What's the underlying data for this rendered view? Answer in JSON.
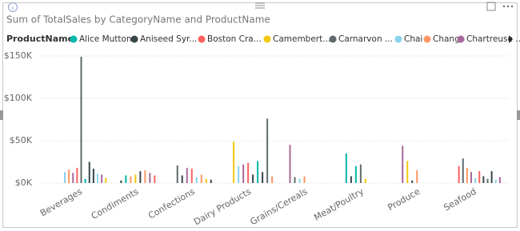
{
  "chart_data": {
    "type": "bar",
    "title": "Sum of TotalSales by CategoryName and ProductName",
    "legend_title": "ProductName",
    "categories": [
      "Beverages",
      "Condiments",
      "Confections",
      "Dairy Products",
      "Grains/Cereals",
      "Meat/Poultry",
      "Produce",
      "Seafood"
    ],
    "series": [
      {
        "name": "Alice Mutton",
        "color": "#01b8aa",
        "values": [
          null,
          null,
          null,
          null,
          null,
          35000,
          null,
          null
        ]
      },
      {
        "name": "Aniseed Syr...",
        "color": "#374649",
        "values": [
          null,
          3000,
          null,
          null,
          null,
          null,
          null,
          null
        ]
      },
      {
        "name": "Boston Cra...",
        "color": "#fd625e",
        "values": [
          null,
          null,
          null,
          null,
          null,
          null,
          null,
          20000
        ]
      },
      {
        "name": "Camembert...",
        "color": "#f2c80f",
        "values": [
          null,
          null,
          null,
          49000,
          null,
          null,
          null,
          null
        ]
      },
      {
        "name": "Carnarvon ...",
        "color": "#5f6b6d",
        "values": [
          null,
          null,
          null,
          null,
          null,
          null,
          null,
          29000
        ]
      },
      {
        "name": "Chai",
        "color": "#8ad4eb",
        "values": [
          13000,
          null,
          null,
          null,
          null,
          null,
          null,
          null
        ]
      },
      {
        "name": "Chang",
        "color": "#fe9666",
        "values": [
          16000,
          null,
          null,
          null,
          null,
          null,
          null,
          null
        ]
      },
      {
        "name": "Chartreuse ...",
        "color": "#a66999",
        "values": [
          12000,
          null,
          null,
          null,
          null,
          null,
          null,
          null
        ]
      }
    ],
    "other_bars": [
      [
        {
          "color": "#fd625e",
          "value": 18000
        },
        {
          "color": "#5f6b6d",
          "value": 149000
        },
        {
          "color": "#01b8aa",
          "value": 5000
        },
        {
          "color": "#374649",
          "value": 25000
        },
        {
          "color": "#374649",
          "value": 17000
        },
        {
          "color": "#8ad4eb",
          "value": 11000
        },
        {
          "color": "#a66999",
          "value": 10000
        },
        {
          "color": "#f2c80f",
          "value": 6000
        }
      ],
      [
        {
          "color": "#01b8aa",
          "value": 9000
        },
        {
          "color": "#fe9666",
          "value": 8000
        },
        {
          "color": "#f2c80f",
          "value": 10000
        },
        {
          "color": "#374649",
          "value": 14000
        },
        {
          "color": "#fe9666",
          "value": 15000
        },
        {
          "color": "#a66999",
          "value": 12000
        },
        {
          "color": "#fd625e",
          "value": 9000
        }
      ],
      [
        {
          "color": "#5f6b6d",
          "value": 21000
        },
        {
          "color": "#374649",
          "value": 9000
        },
        {
          "color": "#a66999",
          "value": 18000
        },
        {
          "color": "#fd625e",
          "value": 17000
        },
        {
          "color": "#8ad4eb",
          "value": 7000
        },
        {
          "color": "#fe9666",
          "value": 10000
        },
        {
          "color": "#f2c80f",
          "value": 5000
        },
        {
          "color": "#374649",
          "value": 4000
        }
      ],
      [
        {
          "color": "#8ad4eb",
          "value": 20000
        },
        {
          "color": "#a66999",
          "value": 22000
        },
        {
          "color": "#fd625e",
          "value": 24000
        },
        {
          "color": "#374649",
          "value": 10000
        },
        {
          "color": "#01b8aa",
          "value": 26000
        },
        {
          "color": "#374649",
          "value": 13000
        },
        {
          "color": "#5f6b6d",
          "value": 76000
        },
        {
          "color": "#fe9666",
          "value": 8000
        }
      ],
      [
        {
          "color": "#a66999",
          "value": 45000
        },
        {
          "color": "#5f6b6d",
          "value": 7000
        },
        {
          "color": "#8ad4eb",
          "value": 5000
        },
        {
          "color": "#fe9666",
          "value": 8000
        }
      ],
      [
        {
          "color": "#374649",
          "value": 8000
        },
        {
          "color": "#01b8aa",
          "value": 20000
        },
        {
          "color": "#5f6b6d",
          "value": 22000
        },
        {
          "color": "#f2c80f",
          "value": 5000
        }
      ],
      [
        {
          "color": "#a66999",
          "value": 44000
        },
        {
          "color": "#f2c80f",
          "value": 26000
        },
        {
          "color": "#374649",
          "value": 3000
        },
        {
          "color": "#fe9666",
          "value": 15000
        }
      ],
      [
        {
          "color": "#fe9666",
          "value": 18000
        },
        {
          "color": "#a66999",
          "value": 13000
        },
        {
          "color": "#8ad4eb",
          "value": 6000
        },
        {
          "color": "#fd625e",
          "value": 14000
        },
        {
          "color": "#374649",
          "value": 8000
        },
        {
          "color": "#5f6b6d",
          "value": 5000
        },
        {
          "color": "#374649",
          "value": 14000
        },
        {
          "color": "#8ad4eb",
          "value": 4000
        },
        {
          "color": "#a66999",
          "value": 7000
        }
      ]
    ],
    "ylim": [
      0,
      150000
    ],
    "yticks": [
      {
        "value": 0,
        "label": "$0K"
      },
      {
        "value": 50000,
        "label": "$50K"
      },
      {
        "value": 100000,
        "label": "$100K"
      },
      {
        "value": 150000,
        "label": "$150K"
      }
    ],
    "grid": true
  }
}
